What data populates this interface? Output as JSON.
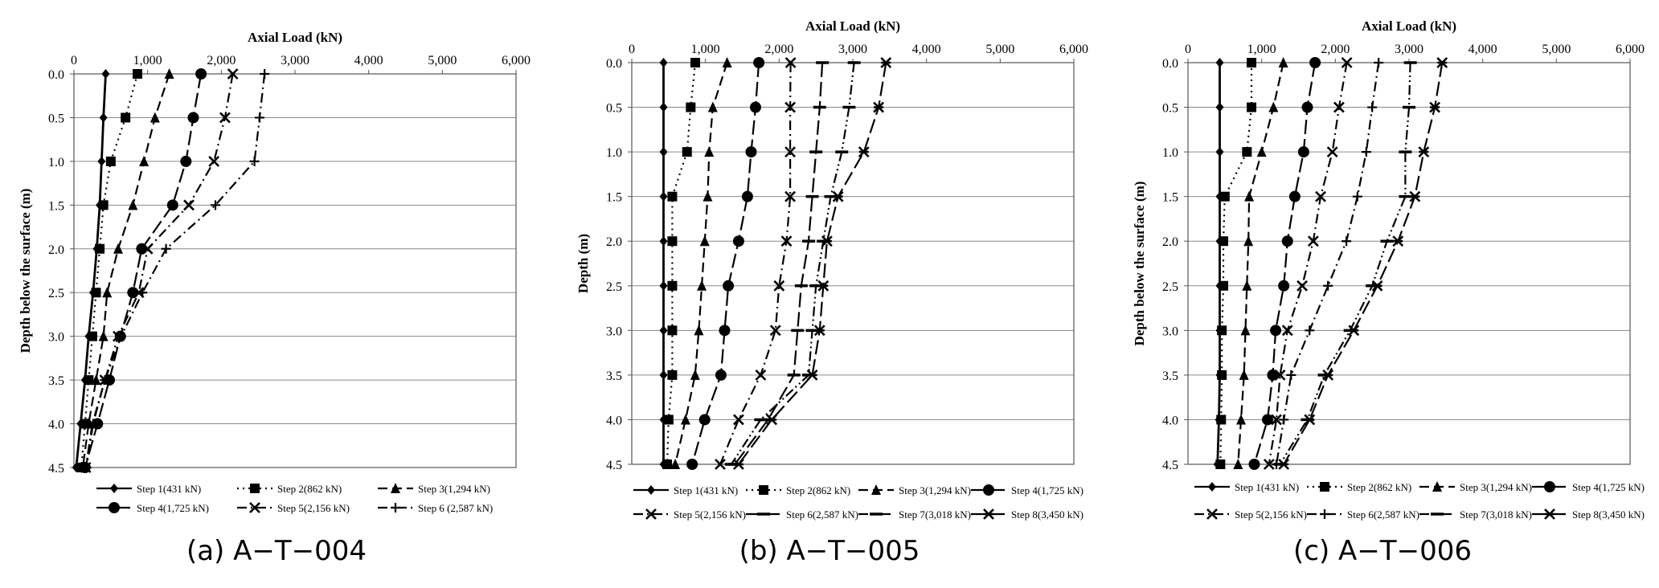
{
  "chart_data": [
    {
      "type": "line",
      "caption": "(a) A−T−004",
      "xlabel": "Axial Load (kN)",
      "ylabel": "Depth below the surface (m)",
      "xlim": [
        0,
        6000
      ],
      "ylim": [
        0,
        4.5
      ],
      "xticks": [
        "0",
        "1,000",
        "2,000",
        "3,000",
        "4,000",
        "5,000",
        "6,000"
      ],
      "yticks": [
        "0.0",
        "0.5",
        "1.0",
        "1.5",
        "2.0",
        "2.5",
        "3.0",
        "3.5",
        "4.0",
        "4.5"
      ],
      "y_reversed": true,
      "grid": "horizontal",
      "legend_position": "bottom",
      "legend_columns": 3,
      "y": [
        0.0,
        0.5,
        1.0,
        1.5,
        2.0,
        2.5,
        3.0,
        3.5,
        4.0,
        4.5
      ],
      "series": [
        {
          "name": "Step 1(431 kN)",
          "marker": "diamond",
          "dash": "solid",
          "values": [
            431,
            400,
            375,
            350,
            310,
            260,
            200,
            150,
            90,
            30
          ]
        },
        {
          "name": "Step 2(862 kN)",
          "marker": "square",
          "dash": "dot",
          "values": [
            862,
            700,
            500,
            400,
            350,
            300,
            250,
            200,
            150,
            100
          ]
        },
        {
          "name": "Step 3(1,294 kN)",
          "marker": "triangle",
          "dash": "dash",
          "values": [
            1294,
            1100,
            950,
            800,
            600,
            450,
            400,
            300,
            200,
            120
          ]
        },
        {
          "name": "Step 4(1,725 kN)",
          "marker": "circle",
          "dash": "longdash",
          "values": [
            1725,
            1620,
            1520,
            1340,
            920,
            800,
            630,
            480,
            320,
            150
          ]
        },
        {
          "name": "Step 5(2,156 kN)",
          "marker": "x",
          "dash": "dashdot",
          "values": [
            2156,
            2050,
            1900,
            1560,
            1000,
            880,
            600,
            420,
            250,
            160
          ]
        },
        {
          "name": "Step 6 (2,587 kN)",
          "marker": "plus",
          "dash": "dashdot",
          "values": [
            2587,
            2520,
            2450,
            1920,
            1250,
            930,
            640,
            420,
            260,
            170
          ]
        }
      ]
    },
    {
      "type": "line",
      "caption": "(b) A−T−005",
      "xlabel": "Axial Load (kN)",
      "ylabel": "Depth (m)",
      "xlim": [
        0,
        6000
      ],
      "ylim": [
        0,
        4.5
      ],
      "xticks": [
        "0",
        "1,000",
        "2,000",
        "3,000",
        "4,000",
        "5,000",
        "6,000"
      ],
      "yticks": [
        "0.0",
        "0.5",
        "1.0",
        "1.5",
        "2.0",
        "2.5",
        "3.0",
        "3.5",
        "4.0",
        "4.5"
      ],
      "y_reversed": true,
      "grid": "horizontal",
      "legend_position": "bottom",
      "legend_columns": 4,
      "y": [
        0.0,
        0.5,
        1.0,
        1.5,
        2.0,
        2.5,
        3.0,
        3.5,
        4.0,
        4.5
      ],
      "series": [
        {
          "name": "Step 1(431 kN)",
          "marker": "diamond",
          "dash": "solid",
          "values": [
            431,
            431,
            431,
            431,
            431,
            431,
            431,
            431,
            431,
            431
          ]
        },
        {
          "name": "Step 2(862 kN)",
          "marker": "square",
          "dash": "dot",
          "values": [
            862,
            800,
            750,
            550,
            550,
            550,
            550,
            550,
            500,
            480
          ]
        },
        {
          "name": "Step 3(1,294 kN)",
          "marker": "triangle",
          "dash": "dash",
          "values": [
            1294,
            1100,
            1050,
            1030,
            990,
            950,
            910,
            860,
            730,
            590
          ]
        },
        {
          "name": "Step 4(1,725 kN)",
          "marker": "circle",
          "dash": "longdash",
          "values": [
            1725,
            1680,
            1620,
            1570,
            1450,
            1310,
            1260,
            1210,
            990,
            820
          ]
        },
        {
          "name": "Step 5(2,156 kN)",
          "marker": "x",
          "dash": "dashdot",
          "values": [
            2156,
            2150,
            2150,
            2150,
            2100,
            2000,
            1950,
            1750,
            1450,
            1200
          ]
        },
        {
          "name": "Step 6(2,587 kN)",
          "marker": "longdash",
          "dash": "longdash",
          "values": [
            2587,
            2550,
            2500,
            2450,
            2400,
            2300,
            2250,
            2200,
            1850,
            1400
          ]
        },
        {
          "name": "Step 7(3,018 kN)",
          "marker": "longdash",
          "dash": "dashdotdot",
          "values": [
            3018,
            2950,
            2850,
            2700,
            2600,
            2500,
            2450,
            2400,
            1750,
            1350
          ]
        },
        {
          "name": "Step 8(3,450 kN)",
          "marker": "star",
          "dash": "longdash",
          "values": [
            3450,
            3350,
            3150,
            2800,
            2650,
            2600,
            2550,
            2450,
            1900,
            1450
          ]
        }
      ]
    },
    {
      "type": "line",
      "caption": "(c) A−T−006",
      "xlabel": "Axial Load (kN)",
      "ylabel": "Depth below the surface (m)",
      "xlim": [
        0,
        6000
      ],
      "ylim": [
        0,
        4.5
      ],
      "xticks": [
        "0",
        "1,000",
        "2,000",
        "3,000",
        "4,000",
        "5,000",
        "6,000"
      ],
      "yticks": [
        "0.0",
        "0.5",
        "1.0",
        "1.5",
        "2.0",
        "2.5",
        "3.0",
        "3.5",
        "4.0",
        "4.5"
      ],
      "y_reversed": true,
      "grid": "horizontal",
      "legend_position": "bottom",
      "legend_columns": 4,
      "y": [
        0.0,
        0.5,
        1.0,
        1.5,
        2.0,
        2.5,
        3.0,
        3.5,
        4.0,
        4.5
      ],
      "series": [
        {
          "name": "Step 1(431 kN)",
          "marker": "diamond",
          "dash": "solid",
          "values": [
            431,
            431,
            431,
            431,
            431,
            431,
            431,
            431,
            420,
            400
          ]
        },
        {
          "name": "Step 2(862 kN)",
          "marker": "square",
          "dash": "dot",
          "values": [
            862,
            862,
            800,
            500,
            480,
            480,
            460,
            460,
            450,
            440
          ]
        },
        {
          "name": "Step 3(1,294 kN)",
          "marker": "triangle",
          "dash": "dash",
          "values": [
            1294,
            1160,
            1000,
            830,
            820,
            800,
            780,
            760,
            720,
            680
          ]
        },
        {
          "name": "Step 4(1,725 kN)",
          "marker": "circle",
          "dash": "longdash",
          "values": [
            1725,
            1620,
            1570,
            1450,
            1350,
            1300,
            1190,
            1150,
            1080,
            900
          ]
        },
        {
          "name": "Step 5(2,156 kN)",
          "marker": "x",
          "dash": "dashdot",
          "values": [
            2156,
            2050,
            1960,
            1800,
            1700,
            1550,
            1350,
            1250,
            1200,
            1100
          ]
        },
        {
          "name": "Step 6(2,587 kN)",
          "marker": "plus",
          "dash": "dashdot",
          "values": [
            2587,
            2500,
            2420,
            2300,
            2150,
            1900,
            1650,
            1400,
            1300,
            1200
          ]
        },
        {
          "name": "Step 7(3,018 kN)",
          "marker": "longdash",
          "dash": "dashdotdot",
          "values": [
            3018,
            3000,
            2950,
            2950,
            2700,
            2500,
            2200,
            1850,
            1620,
            1250
          ]
        },
        {
          "name": "Step 8(3,450 kN)",
          "marker": "star",
          "dash": "longdash",
          "values": [
            3450,
            3350,
            3200,
            3080,
            2850,
            2570,
            2250,
            1900,
            1650,
            1300
          ]
        }
      ]
    }
  ]
}
